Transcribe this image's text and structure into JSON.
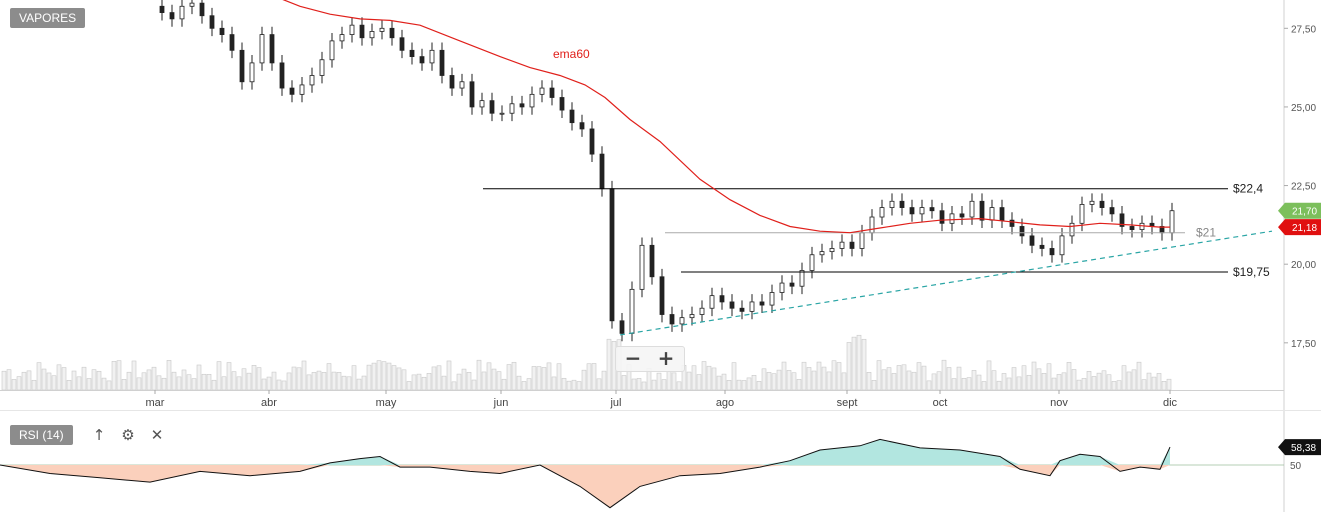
{
  "instrument_label": "VAPORES",
  "indicator_label": "RSI (14)",
  "icons": {
    "up": "arrow-up-icon",
    "settings": "gear-icon",
    "close": "close-icon",
    "zoom_out": "minus-icon",
    "zoom_in": "plus-icon"
  },
  "toolbar": {
    "up_glyph": "↑",
    "gear_glyph": "⚙",
    "close_glyph": "✕",
    "zoom_out_glyph": "−",
    "zoom_in_glyph": "+"
  },
  "colors": {
    "ema": "#e0201b",
    "support_line": "#000000",
    "mid_line": "#aaaaaa",
    "trend_line": "#2aa5a5",
    "price_tag_last": "#7cbf5c",
    "price_tag_ema": "#e01010",
    "rsi_above": "#b2e6e0",
    "rsi_below": "#fbd0bc"
  },
  "chart_data": [
    {
      "type": "candlestick",
      "title": "",
      "x_ticks": [
        "mar",
        "abr",
        "may",
        "jun",
        "jul",
        "ago",
        "sept",
        "oct",
        "nov",
        "dic"
      ],
      "y_ticks": [
        "17,50",
        "20,00",
        "22,50",
        "25,00",
        "27,50"
      ],
      "y_tick_values": [
        17.5,
        20.0,
        22.5,
        25.0,
        27.5
      ],
      "ylim": [
        16.0,
        28.4
      ],
      "grid": false,
      "series": [
        {
          "name": "ema60",
          "kind": "line",
          "values": [
            [
              1,
              29.2
            ],
            [
              60,
              29.0
            ],
            [
              100,
              28.85
            ],
            [
              140,
              28.75
            ],
            [
              220,
              28.6
            ],
            [
              260,
              28.5
            ],
            [
              280,
              28.45
            ],
            [
              300,
              28.2
            ],
            [
              330,
              27.95
            ],
            [
              360,
              27.8
            ],
            [
              390,
              27.75
            ],
            [
              420,
              27.6
            ],
            [
              460,
              27.1
            ],
            [
              500,
              26.6
            ],
            [
              530,
              26.25
            ],
            [
              560,
              26.0
            ],
            [
              585,
              25.7
            ],
            [
              605,
              25.3
            ],
            [
              630,
              24.6
            ],
            [
              660,
              23.9
            ],
            [
              700,
              22.7
            ],
            [
              730,
              22.05
            ],
            [
              760,
              21.55
            ],
            [
              790,
              21.2
            ],
            [
              820,
              21.05
            ],
            [
              850,
              21.0
            ],
            [
              880,
              21.15
            ],
            [
              910,
              21.3
            ],
            [
              940,
              21.4
            ],
            [
              980,
              21.45
            ],
            [
              1010,
              21.35
            ],
            [
              1040,
              21.25
            ],
            [
              1070,
              21.2
            ],
            [
              1100,
              21.3
            ],
            [
              1130,
              21.25
            ],
            [
              1160,
              21.18
            ],
            [
              1170,
              21.18
            ]
          ]
        },
        {
          "name": "close",
          "kind": "candles",
          "values": [
            [
              160,
              28.0
            ],
            [
              170,
              27.8
            ],
            [
              180,
              28.2
            ],
            [
              190,
              28.3
            ],
            [
              200,
              27.9
            ],
            [
              210,
              27.5
            ],
            [
              220,
              27.3
            ],
            [
              230,
              26.8
            ],
            [
              240,
              25.8
            ],
            [
              250,
              26.4
            ],
            [
              260,
              27.3
            ],
            [
              270,
              26.4
            ],
            [
              280,
              25.6
            ],
            [
              290,
              25.4
            ],
            [
              300,
              25.7
            ],
            [
              310,
              26.0
            ],
            [
              320,
              26.5
            ],
            [
              330,
              27.1
            ],
            [
              340,
              27.3
            ],
            [
              350,
              27.6
            ],
            [
              360,
              27.2
            ],
            [
              370,
              27.4
            ],
            [
              380,
              27.5
            ],
            [
              390,
              27.2
            ],
            [
              400,
              26.8
            ],
            [
              410,
              26.6
            ],
            [
              420,
              26.4
            ],
            [
              430,
              26.8
            ],
            [
              440,
              26.0
            ],
            [
              450,
              25.6
            ],
            [
              460,
              25.8
            ],
            [
              470,
              25.0
            ],
            [
              480,
              25.2
            ],
            [
              490,
              24.8
            ],
            [
              500,
              24.8
            ],
            [
              510,
              25.1
            ],
            [
              520,
              25.0
            ],
            [
              530,
              25.4
            ],
            [
              540,
              25.6
            ],
            [
              550,
              25.3
            ],
            [
              560,
              24.9
            ],
            [
              570,
              24.5
            ],
            [
              580,
              24.3
            ],
            [
              590,
              23.5
            ],
            [
              600,
              22.4
            ],
            [
              610,
              18.2
            ],
            [
              620,
              17.8
            ],
            [
              630,
              19.2
            ],
            [
              640,
              20.6
            ],
            [
              650,
              19.6
            ],
            [
              660,
              18.4
            ],
            [
              670,
              18.1
            ],
            [
              680,
              18.3
            ],
            [
              690,
              18.4
            ],
            [
              700,
              18.6
            ],
            [
              710,
              19.0
            ],
            [
              720,
              18.8
            ],
            [
              730,
              18.6
            ],
            [
              740,
              18.5
            ],
            [
              750,
              18.8
            ],
            [
              760,
              18.7
            ],
            [
              770,
              19.1
            ],
            [
              780,
              19.4
            ],
            [
              790,
              19.3
            ],
            [
              800,
              19.8
            ],
            [
              810,
              20.3
            ],
            [
              820,
              20.4
            ],
            [
              830,
              20.5
            ],
            [
              840,
              20.7
            ],
            [
              850,
              20.5
            ],
            [
              860,
              21.0
            ],
            [
              870,
              21.5
            ],
            [
              880,
              21.8
            ],
            [
              890,
              22.0
            ],
            [
              900,
              21.8
            ],
            [
              910,
              21.6
            ],
            [
              920,
              21.8
            ],
            [
              930,
              21.7
            ],
            [
              940,
              21.3
            ],
            [
              950,
              21.6
            ],
            [
              960,
              21.5
            ],
            [
              970,
              22.0
            ],
            [
              980,
              21.4
            ],
            [
              990,
              21.8
            ],
            [
              1000,
              21.4
            ],
            [
              1010,
              21.2
            ],
            [
              1020,
              20.9
            ],
            [
              1030,
              20.6
            ],
            [
              1040,
              20.5
            ],
            [
              1050,
              20.3
            ],
            [
              1060,
              20.9
            ],
            [
              1070,
              21.3
            ],
            [
              1080,
              21.9
            ],
            [
              1090,
              22.0
            ],
            [
              1100,
              21.8
            ],
            [
              1110,
              21.6
            ],
            [
              1120,
              21.2
            ],
            [
              1130,
              21.1
            ],
            [
              1140,
              21.3
            ],
            [
              1150,
              21.2
            ],
            [
              1160,
              21.0
            ],
            [
              1170,
              21.7
            ]
          ]
        }
      ],
      "annotations": [
        {
          "label": "$22,4",
          "value": 22.4
        },
        {
          "label": "$21",
          "value": 21.0
        },
        {
          "label": "$19,75",
          "value": 19.75
        }
      ],
      "series_label": "ema60",
      "price_tags": [
        {
          "label": "21,70",
          "value": 21.7
        },
        {
          "label": "21,18",
          "value": 21.18
        }
      ],
      "volume_baseline": "present"
    },
    {
      "type": "line",
      "title": "",
      "series": [
        {
          "name": "RSI (14)",
          "values": [
            [
              0,
              50
            ],
            [
              50,
              46
            ],
            [
              100,
              44
            ],
            [
              150,
              42
            ],
            [
              200,
              47
            ],
            [
              250,
              45
            ],
            [
              300,
              47
            ],
            [
              330,
              51
            ],
            [
              360,
              53
            ],
            [
              380,
              54
            ],
            [
              400,
              49
            ],
            [
              430,
              49
            ],
            [
              470,
              47
            ],
            [
              500,
              46
            ],
            [
              540,
              50
            ],
            [
              580,
              40
            ],
            [
              610,
              30
            ],
            [
              640,
              40
            ],
            [
              680,
              45
            ],
            [
              720,
              46
            ],
            [
              760,
              49
            ],
            [
              790,
              52
            ],
            [
              820,
              57
            ],
            [
              860,
              59
            ],
            [
              880,
              62
            ],
            [
              920,
              58
            ],
            [
              960,
              57
            ],
            [
              1000,
              54
            ],
            [
              1020,
              48
            ],
            [
              1050,
              45
            ],
            [
              1060,
              52
            ],
            [
              1080,
              55
            ],
            [
              1100,
              54
            ],
            [
              1120,
              47
            ],
            [
              1140,
              49
            ],
            [
              1160,
              48
            ],
            [
              1170,
              58.38
            ]
          ]
        }
      ],
      "y_ticks": [
        "50"
      ],
      "threshold": 50,
      "last_value_label": "58,38"
    }
  ]
}
